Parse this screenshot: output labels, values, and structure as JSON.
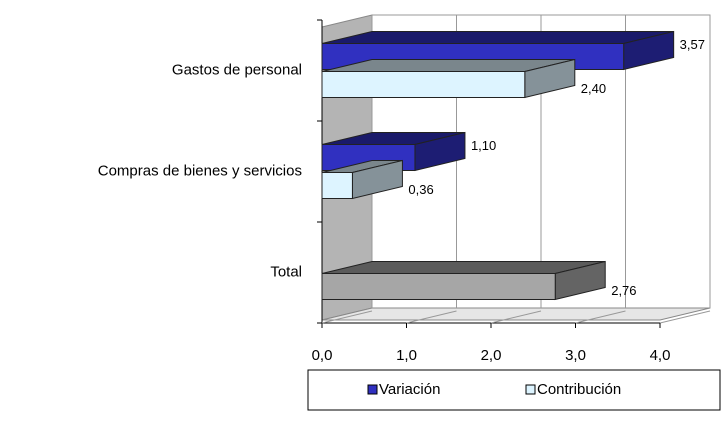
{
  "chart_data": {
    "type": "bar3d_horizontal",
    "categories": [
      "Gastos de personal",
      "Compras de bienes y servicios",
      "Total"
    ],
    "series": [
      {
        "name": "Variación",
        "color": "#3030c0",
        "values": [
          3.57,
          1.1,
          null
        ],
        "value_labels": [
          "3,57",
          "1,10",
          null
        ]
      },
      {
        "name": "Contribución",
        "color": "#ddf4ff",
        "colors": [
          "#ddf4ff",
          "#ddf4ff",
          "#a6a6a6"
        ],
        "values": [
          2.4,
          0.36,
          2.76
        ],
        "value_labels": [
          "2,40",
          "0,36",
          "2,76"
        ]
      }
    ],
    "xlim": [
      0,
      4
    ],
    "xticks": [
      {
        "value": 0,
        "label": "0,0"
      },
      {
        "value": 1,
        "label": "1,0"
      },
      {
        "value": 2,
        "label": "2,0"
      },
      {
        "value": 3,
        "label": "3,0"
      },
      {
        "value": 4,
        "label": "4,0"
      }
    ],
    "grid": true,
    "legend": "bottom"
  }
}
